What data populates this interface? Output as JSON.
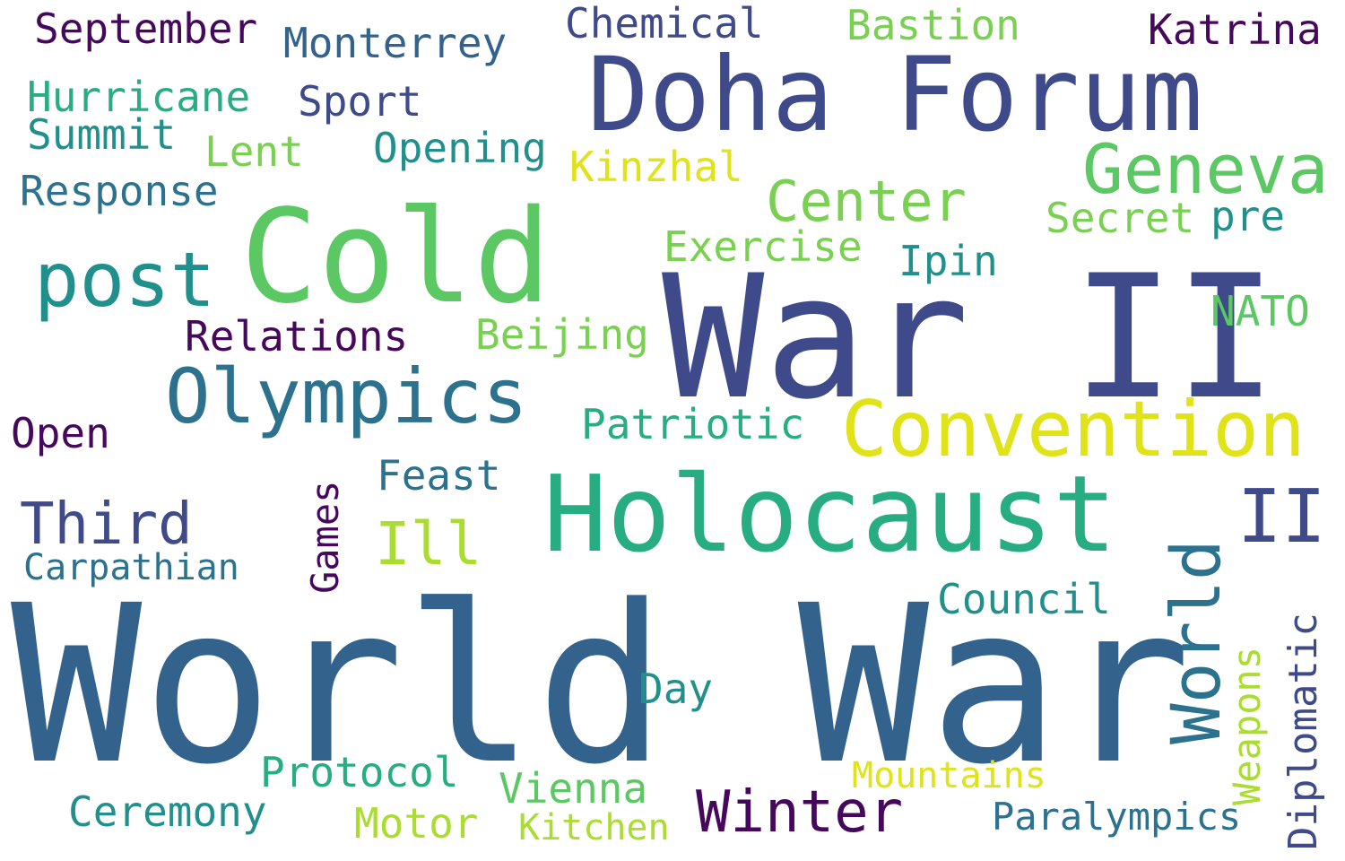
{
  "colors": {
    "background": "#ffffff",
    "dark_purple": "#46085c",
    "indigo": "#3f4a8a",
    "slate_blue": "#33638d",
    "steel_teal": "#2c728e",
    "teal": "#21908d",
    "green_teal": "#27ad81",
    "green": "#5cc863",
    "light_green": "#7ad151",
    "lime": "#aadc32",
    "yellow": "#dfe318"
  },
  "words": {
    "world_war": "World War",
    "war_ii": "War II",
    "doha_forum": "Doha Forum",
    "cold": "Cold",
    "holocaust": "Holocaust",
    "convention": "Convention",
    "olympics": "Olympics",
    "post": "post",
    "geneva": "Geneva",
    "world_vertical": "World",
    "winter": "Winter",
    "third": "Third",
    "center": "Center",
    "ii_right": "II",
    "ill": "Ill",
    "september": "September",
    "monterrey": "Monterrey",
    "chemical": "Chemical",
    "bastion": "Bastion",
    "katrina": "Katrina",
    "hurricane": "Hurricane",
    "sport": "Sport",
    "summit": "Summit",
    "lent": "Lent",
    "opening": "Opening",
    "kinzhal": "Kinzhal",
    "response": "Response",
    "secret": "Secret",
    "pre": "pre",
    "exercise": "Exercise",
    "ipin": "Ipin",
    "nato": "NATO",
    "relations": "Relations",
    "beijing": "Beijing",
    "patriotic": "Patriotic",
    "open": "Open",
    "feast": "Feast",
    "games": "Games",
    "carpathian": "Carpathian",
    "council": "Council",
    "diplomatic": "Diplomatic",
    "weapons": "Weapons",
    "day": "Day",
    "protocol": "Protocol",
    "vienna": "Vienna",
    "mountains": "Mountains",
    "ceremony": "Ceremony",
    "motor": "Motor",
    "kitchen": "Kitchen",
    "paralympics": "Paralympics"
  }
}
